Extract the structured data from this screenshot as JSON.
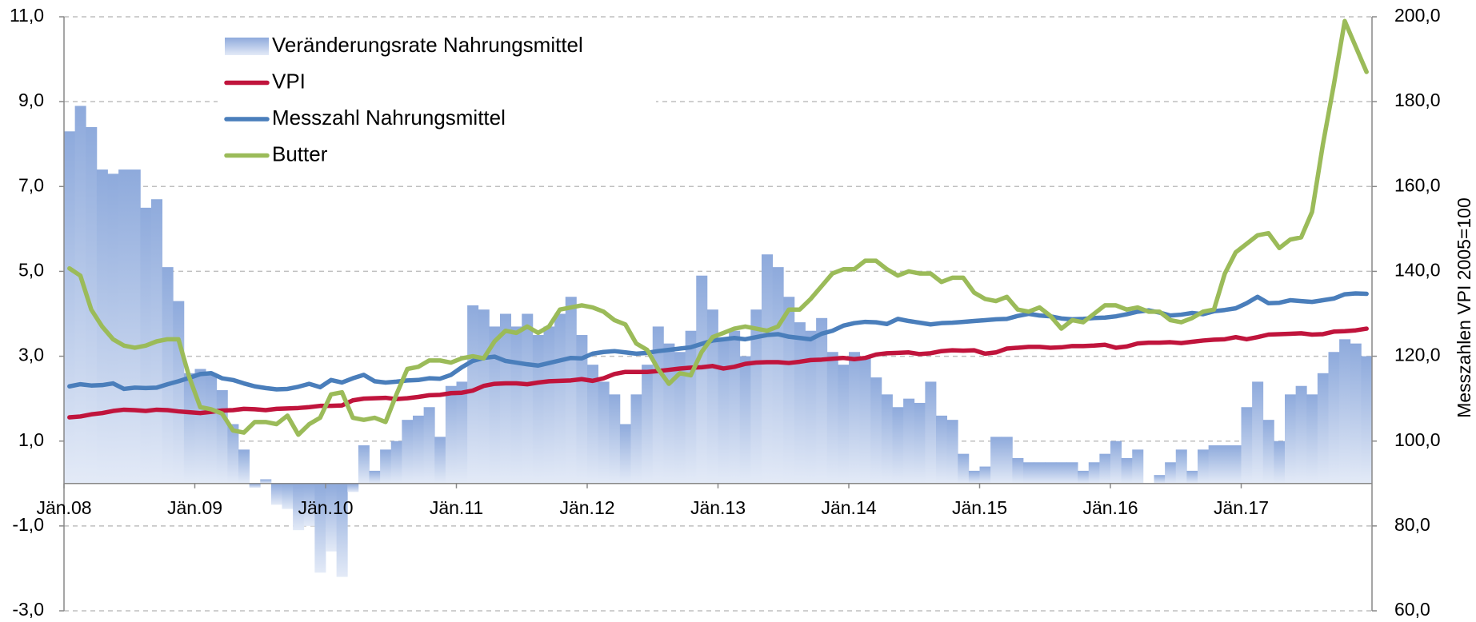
{
  "chart_data": {
    "type": "bar",
    "y2label": "Messzahlen VPI 2005=100",
    "categories": [
      "Jän.08",
      null,
      null,
      null,
      null,
      null,
      null,
      null,
      null,
      null,
      null,
      null,
      "Jän.09",
      null,
      null,
      null,
      null,
      null,
      null,
      null,
      null,
      null,
      null,
      null,
      "Jän.10",
      null,
      null,
      null,
      null,
      null,
      null,
      null,
      null,
      null,
      null,
      null,
      "Jän.11",
      null,
      null,
      null,
      null,
      null,
      null,
      null,
      null,
      null,
      null,
      null,
      "Jän.12",
      null,
      null,
      null,
      null,
      null,
      null,
      null,
      null,
      null,
      null,
      null,
      "Jän.13",
      null,
      null,
      null,
      null,
      null,
      null,
      null,
      null,
      null,
      null,
      null,
      "Jän.14",
      null,
      null,
      null,
      null,
      null,
      null,
      null,
      null,
      null,
      null,
      null,
      "Jän.15",
      null,
      null,
      null,
      null,
      null,
      null,
      null,
      null,
      null,
      null,
      null,
      "Jän.16",
      null,
      null,
      null,
      null,
      null,
      null,
      null,
      null,
      null,
      null,
      null,
      "Jän.17",
      null,
      null,
      null,
      null,
      null,
      null,
      null,
      null,
      null,
      null,
      null
    ],
    "ylim": [
      -3,
      11
    ],
    "yticks": [
      {
        "value": -3,
        "label": "-3,0"
      },
      {
        "value": -1,
        "label": "-1,0"
      },
      {
        "value": 1,
        "label": "1,0"
      },
      {
        "value": 3,
        "label": "3,0"
      },
      {
        "value": 5,
        "label": "5,0"
      },
      {
        "value": 7,
        "label": "7,0"
      },
      {
        "value": 9,
        "label": "9,0"
      },
      {
        "value": 11,
        "label": "11,0"
      }
    ],
    "y2lim": [
      60,
      200
    ],
    "y2ticks": [
      {
        "value": 60,
        "label": "60,0"
      },
      {
        "value": 80,
        "label": "80,0"
      },
      {
        "value": 100,
        "label": "100,0"
      },
      {
        "value": 120,
        "label": "120,0"
      },
      {
        "value": 140,
        "label": "140,0"
      },
      {
        "value": 160,
        "label": "160,0"
      },
      {
        "value": 180,
        "label": "180,0"
      },
      {
        "value": 200,
        "label": "200,0"
      }
    ],
    "grid": true,
    "series": [
      {
        "name": "Veränderungsrate Nahrungsmittel",
        "type": "bar",
        "axis": "y",
        "color": "#8eaadc",
        "values": [
          8.3,
          8.9,
          8.4,
          7.4,
          7.3,
          7.4,
          7.4,
          6.5,
          6.7,
          5.1,
          4.3,
          2.6,
          2.7,
          2.6,
          2.2,
          1.4,
          0.8,
          -0.1,
          0.1,
          -0.5,
          -0.6,
          -1.1,
          -1.0,
          -2.1,
          -1.6,
          -2.2,
          -0.2,
          0.9,
          0.3,
          0.8,
          1.0,
          1.5,
          1.6,
          1.8,
          1.1,
          2.3,
          2.4,
          4.2,
          4.1,
          3.7,
          4.0,
          3.7,
          4.0,
          3.5,
          3.7,
          4.0,
          4.4,
          3.5,
          2.8,
          2.4,
          2.1,
          1.4,
          2.1,
          2.8,
          3.7,
          3.3,
          3.1,
          3.6,
          4.9,
          4.1,
          3.4,
          3.6,
          3.0,
          4.1,
          5.4,
          5.1,
          4.4,
          3.8,
          3.6,
          3.9,
          3.1,
          2.8,
          3.1,
          3.0,
          2.5,
          2.1,
          1.8,
          2.0,
          1.9,
          2.4,
          1.6,
          1.5,
          0.7,
          0.3,
          0.4,
          1.1,
          1.1,
          0.6,
          0.5,
          0.5,
          0.5,
          0.5,
          0.5,
          0.3,
          0.5,
          0.7,
          1.0,
          0.6,
          0.8,
          0.0,
          0.2,
          0.5,
          0.8,
          0.3,
          0.8,
          0.9,
          0.9,
          0.9,
          1.8,
          2.4,
          1.5,
          1.0,
          2.1,
          2.3,
          2.1,
          2.6,
          3.1,
          3.4,
          3.3,
          3.0
        ]
      },
      {
        "name": "VPI",
        "type": "line",
        "axis": "y2",
        "color": "#c0143c",
        "values": [
          105.6,
          105.8,
          106.3,
          106.6,
          107.1,
          107.4,
          107.3,
          107.1,
          107.4,
          107.3,
          107.0,
          106.8,
          106.6,
          106.9,
          107.2,
          107.3,
          107.6,
          107.5,
          107.3,
          107.6,
          107.7,
          107.8,
          108.0,
          108.3,
          108.3,
          108.4,
          109.6,
          110.0,
          110.1,
          110.2,
          109.9,
          110.1,
          110.4,
          110.8,
          110.9,
          111.3,
          111.4,
          111.9,
          113.0,
          113.5,
          113.6,
          113.6,
          113.4,
          113.8,
          114.1,
          114.2,
          114.3,
          114.6,
          114.2,
          114.8,
          115.8,
          116.3,
          116.3,
          116.3,
          116.5,
          116.8,
          117.1,
          117.3,
          117.4,
          117.7,
          117.1,
          117.5,
          118.2,
          118.5,
          118.6,
          118.6,
          118.4,
          118.7,
          119.1,
          119.2,
          119.4,
          119.6,
          119.3,
          119.6,
          120.4,
          120.7,
          120.8,
          120.9,
          120.5,
          120.7,
          121.2,
          121.4,
          121.3,
          121.4,
          120.6,
          120.9,
          121.8,
          122.0,
          122.2,
          122.2,
          122.0,
          122.1,
          122.4,
          122.4,
          122.5,
          122.7,
          122.0,
          122.3,
          123.0,
          123.2,
          123.2,
          123.3,
          123.1,
          123.4,
          123.7,
          123.9,
          124.0,
          124.5,
          124.0,
          124.5,
          125.1,
          125.2,
          125.3,
          125.4,
          125.1,
          125.2,
          125.8,
          125.9,
          126.1,
          126.5
        ]
      },
      {
        "name": "Messzahl Nahrungsmittel",
        "type": "line",
        "axis": "y2",
        "color": "#4a7ebb",
        "values": [
          112.9,
          113.4,
          113.1,
          113.2,
          113.6,
          112.3,
          112.6,
          112.5,
          112.6,
          113.4,
          114.1,
          114.9,
          115.8,
          116.0,
          114.8,
          114.4,
          113.6,
          112.9,
          112.5,
          112.2,
          112.3,
          112.8,
          113.5,
          112.7,
          114.4,
          113.8,
          114.8,
          115.6,
          114.1,
          113.8,
          114.0,
          114.3,
          114.4,
          114.8,
          114.7,
          115.6,
          117.4,
          118.9,
          119.6,
          119.9,
          118.9,
          118.5,
          118.1,
          117.8,
          118.4,
          119.0,
          119.6,
          119.5,
          120.6,
          121.0,
          121.2,
          120.9,
          120.6,
          120.8,
          121.2,
          121.5,
          121.8,
          122.1,
          122.9,
          123.7,
          124.0,
          124.3,
          124.0,
          124.5,
          125.0,
          125.2,
          124.6,
          124.3,
          124.0,
          125.3,
          126.0,
          127.2,
          127.8,
          128.1,
          128.0,
          127.6,
          128.8,
          128.3,
          127.9,
          127.5,
          127.8,
          127.9,
          128.1,
          128.3,
          128.5,
          128.7,
          128.8,
          129.5,
          130.0,
          129.6,
          129.4,
          128.9,
          128.7,
          128.8,
          129.0,
          129.1,
          129.4,
          129.9,
          130.5,
          130.8,
          130.3,
          129.6,
          129.8,
          130.2,
          129.9,
          130.6,
          130.9,
          131.3,
          132.5,
          134.0,
          132.5,
          132.6,
          133.2,
          133.0,
          132.8,
          133.2,
          133.6,
          134.6,
          134.8,
          134.7
        ]
      },
      {
        "name": "Butter",
        "type": "line",
        "axis": "y2",
        "color": "#9bbb59",
        "values": [
          140.7,
          139,
          131,
          127,
          124,
          122.5,
          122,
          122.5,
          123.5,
          124,
          124,
          115,
          108,
          107.5,
          106.5,
          102.5,
          102,
          104.5,
          104.5,
          104,
          106,
          101.5,
          104,
          105.5,
          111,
          111.5,
          105.5,
          105,
          105.5,
          104.5,
          111,
          117,
          117.5,
          119,
          119,
          118.5,
          119.5,
          120,
          119.5,
          123.5,
          126,
          125.5,
          127,
          125.5,
          127,
          131,
          131.5,
          132,
          131.5,
          130.5,
          128.5,
          127.5,
          123,
          121.5,
          117,
          113.5,
          116,
          115.5,
          121,
          124.5,
          125.5,
          126.5,
          127,
          126.5,
          126,
          127,
          131,
          131,
          133.5,
          136.5,
          139.5,
          140.5,
          140.5,
          142.5,
          142.5,
          140.5,
          139,
          140,
          139.5,
          139.5,
          137.5,
          138.5,
          138.5,
          135,
          133.5,
          133,
          134,
          131,
          130.5,
          131.5,
          129.5,
          126.5,
          128.5,
          128,
          130,
          132,
          132,
          131,
          131.5,
          130.5,
          130.5,
          128.5,
          128,
          129,
          130.5,
          131,
          139.5,
          144.5,
          146.5,
          148.5,
          149,
          145.5,
          147.5,
          148,
          154,
          170,
          184,
          199,
          193,
          187
        ]
      }
    ]
  }
}
